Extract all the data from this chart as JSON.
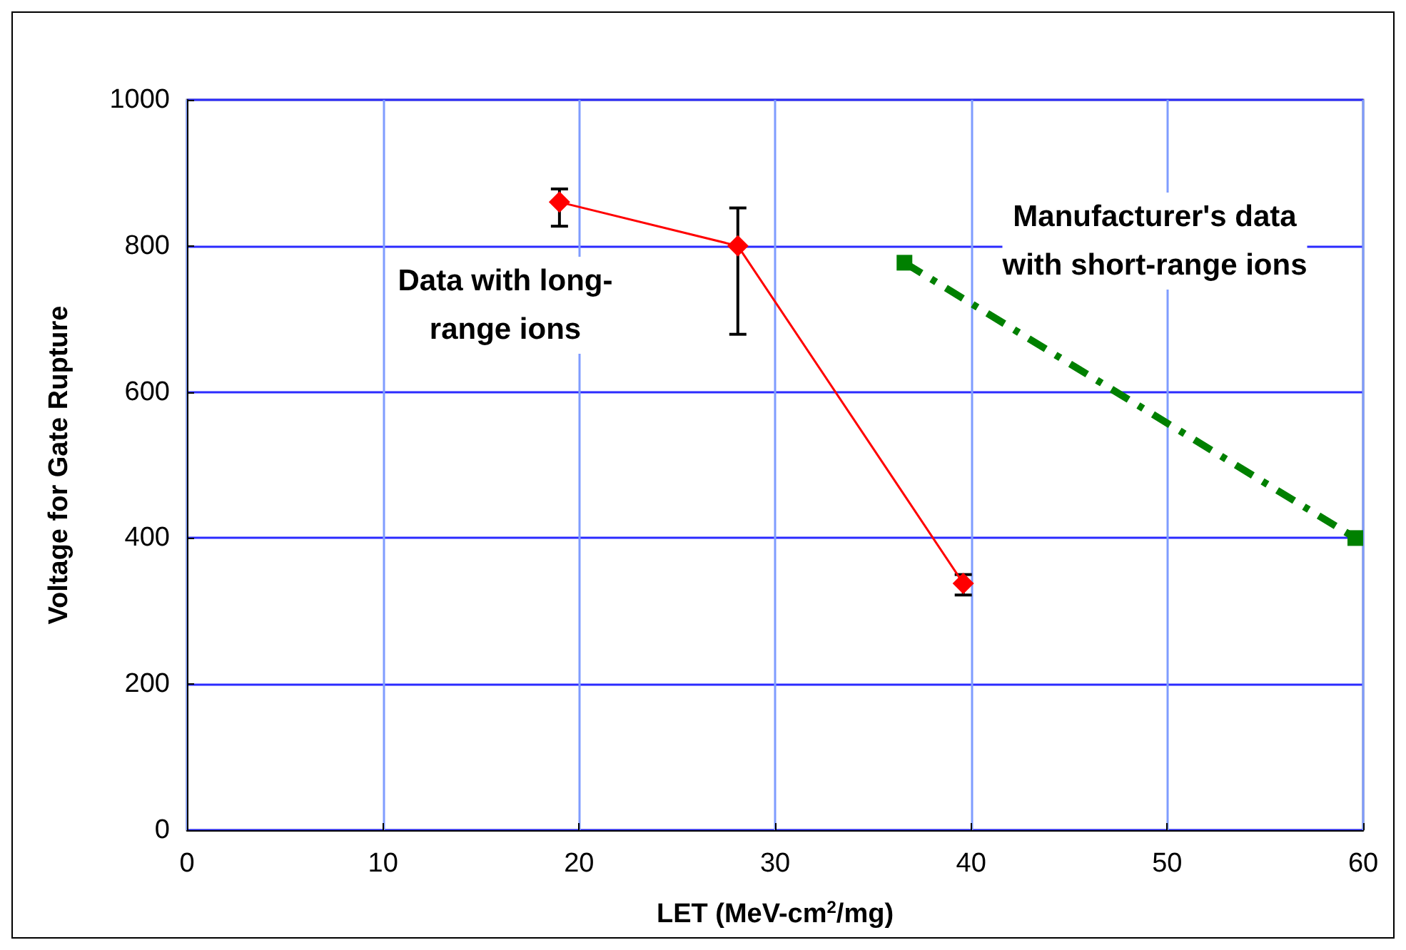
{
  "chart_data": {
    "type": "line",
    "xlabel": "LET (MeV-cm$^{2}$/mg)",
    "ylabel": "Voltage for Gate Rupture",
    "xlim": [
      0,
      60
    ],
    "xticks": [
      0,
      10,
      20,
      30,
      40,
      50,
      60
    ],
    "ylim": [
      0,
      1000
    ],
    "yticks": [
      0,
      200,
      400,
      600,
      800,
      1000
    ],
    "grid": true,
    "series": [
      {
        "color": "#ff0000",
        "x": [
          19.0,
          28.1,
          39.6
        ],
        "values": [
          860,
          800,
          338
        ],
        "errors": [
          [
            827,
            878
          ],
          [
            679,
            852
          ],
          [
            322,
            350
          ]
        ],
        "marker": "diamond",
        "line_style": "solid"
      },
      {
        "color": "#008000",
        "x": [
          36.6,
          59.6
        ],
        "values": [
          777,
          400
        ],
        "marker": "square",
        "line_style": "dashed"
      }
    ],
    "annotations": [
      "Data with long-\nrange ions",
      "Manufacturer's data\nwith short-range ions"
    ]
  }
}
